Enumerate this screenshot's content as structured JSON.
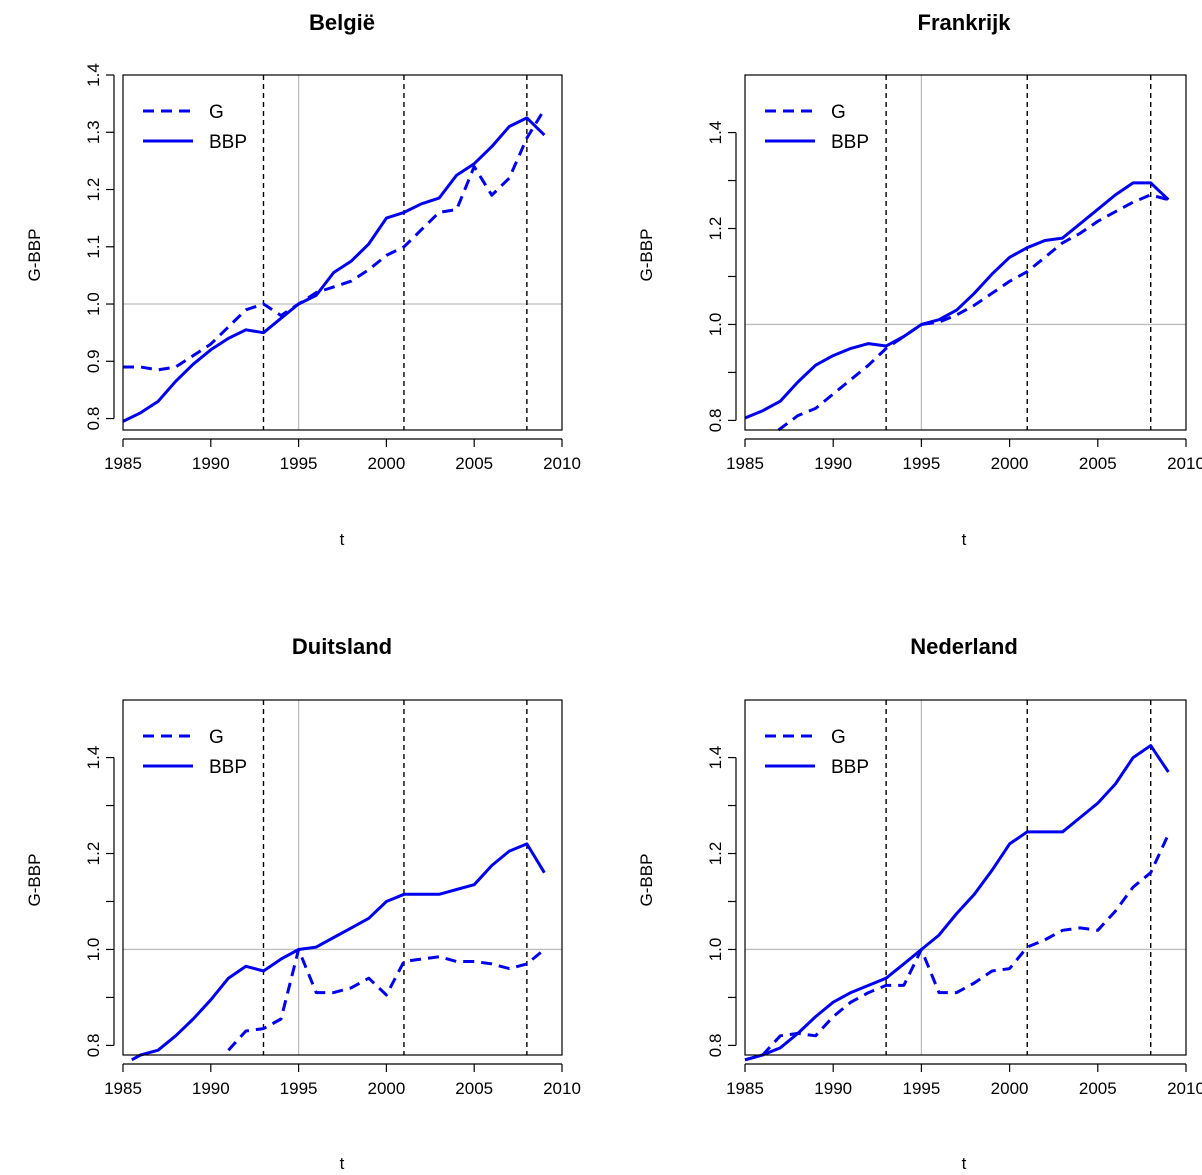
{
  "chart_data": [
    {
      "type": "line",
      "title": "België",
      "xlabel": "t",
      "ylabel": "G-BBP",
      "xlim": [
        1985,
        2010
      ],
      "ylim": [
        0.78,
        1.4
      ],
      "xticks": [
        1985,
        1990,
        1995,
        2000,
        2005,
        2010
      ],
      "yticks": [
        0.8,
        0.9,
        1.0,
        1.1,
        1.2,
        1.3,
        1.4
      ],
      "ytick_labels": [
        "0.8",
        "0.9",
        "1.0",
        "1.1",
        "1.2",
        "1.3",
        "1.4"
      ],
      "hline": 1.0,
      "vline_ref": 1995,
      "vlines_dashed": [
        1993,
        2001,
        2008
      ],
      "legend": "top-left",
      "series": [
        {
          "name": "G",
          "style": "dashed",
          "x": [
            1985,
            1986,
            1987,
            1988,
            1989,
            1990,
            1991,
            1992,
            1993,
            1994,
            1995,
            1996,
            1997,
            1998,
            1999,
            2000,
            2001,
            2002,
            2003,
            2004,
            2005,
            2006,
            2007,
            2008,
            2009
          ],
          "y": [
            0.89,
            0.89,
            0.885,
            0.89,
            0.91,
            0.93,
            0.96,
            0.99,
            1.0,
            0.98,
            1.0,
            1.02,
            1.03,
            1.04,
            1.06,
            1.085,
            1.1,
            1.13,
            1.16,
            1.165,
            1.24,
            1.19,
            1.22,
            1.29,
            1.34
          ]
        },
        {
          "name": "BBP",
          "style": "solid",
          "x": [
            1985,
            1986,
            1987,
            1988,
            1989,
            1990,
            1991,
            1992,
            1993,
            1994,
            1995,
            1996,
            1997,
            1998,
            1999,
            2000,
            2001,
            2002,
            2003,
            2004,
            2005,
            2006,
            2007,
            2008,
            2009
          ],
          "y": [
            0.795,
            0.81,
            0.83,
            0.865,
            0.895,
            0.92,
            0.94,
            0.955,
            0.95,
            0.975,
            1.0,
            1.015,
            1.055,
            1.075,
            1.105,
            1.15,
            1.16,
            1.175,
            1.185,
            1.225,
            1.245,
            1.275,
            1.31,
            1.325,
            1.295
          ]
        }
      ]
    },
    {
      "type": "line",
      "title": "Frankrijk",
      "xlabel": "t",
      "ylabel": "G-BBP",
      "xlim": [
        1985,
        2010
      ],
      "ylim": [
        0.78,
        1.52
      ],
      "xticks": [
        1985,
        1990,
        1995,
        2000,
        2005,
        2010
      ],
      "yticks": [
        0.8,
        0.9,
        1.0,
        1.1,
        1.2,
        1.3,
        1.4
      ],
      "ytick_labels": [
        "0.8",
        "",
        "1.0",
        "",
        "1.2",
        "",
        "1.4"
      ],
      "hline": 1.0,
      "vline_ref": 1995,
      "vlines_dashed": [
        1993,
        2001,
        2008
      ],
      "legend": "top-left",
      "series": [
        {
          "name": "G",
          "style": "dashed",
          "x": [
            1986.9,
            1988,
            1989,
            1990,
            1991,
            1992,
            1993,
            1994,
            1995,
            1996,
            1997,
            1998,
            1999,
            2000,
            2001,
            2002,
            2003,
            2004,
            2005,
            2006,
            2007,
            2008,
            2009
          ],
          "y": [
            0.78,
            0.81,
            0.825,
            0.855,
            0.885,
            0.915,
            0.95,
            0.975,
            1.0,
            1.005,
            1.02,
            1.04,
            1.065,
            1.09,
            1.11,
            1.14,
            1.17,
            1.19,
            1.215,
            1.235,
            1.255,
            1.27,
            1.26
          ]
        },
        {
          "name": "BBP",
          "style": "solid",
          "x": [
            1985,
            1986,
            1987,
            1988,
            1989,
            1990,
            1991,
            1992,
            1993,
            1994,
            1995,
            1996,
            1997,
            1998,
            1999,
            2000,
            2001,
            2002,
            2003,
            2004,
            2005,
            2006,
            2007,
            2008,
            2009
          ],
          "y": [
            0.805,
            0.82,
            0.84,
            0.88,
            0.915,
            0.935,
            0.95,
            0.96,
            0.955,
            0.975,
            1.0,
            1.01,
            1.03,
            1.065,
            1.105,
            1.14,
            1.16,
            1.175,
            1.18,
            1.21,
            1.24,
            1.27,
            1.295,
            1.295,
            1.26
          ]
        }
      ]
    },
    {
      "type": "line",
      "title": "Duitsland",
      "xlabel": "t",
      "ylabel": "G-BBP",
      "xlim": [
        1985,
        2010
      ],
      "ylim": [
        0.78,
        1.52
      ],
      "xticks": [
        1985,
        1990,
        1995,
        2000,
        2005,
        2010
      ],
      "yticks": [
        0.8,
        0.9,
        1.0,
        1.1,
        1.2,
        1.3,
        1.4
      ],
      "ytick_labels": [
        "0.8",
        "",
        "1.0",
        "",
        "1.2",
        "",
        "1.4"
      ],
      "hline": 1.0,
      "vline_ref": 1995,
      "vlines_dashed": [
        1993,
        2001,
        2008
      ],
      "legend": "top-left",
      "series": [
        {
          "name": "G",
          "style": "dashed",
          "x": [
            1991,
            1992,
            1993,
            1994,
            1995,
            1996,
            1997,
            1998,
            1999,
            2000,
            2001,
            2002,
            2003,
            2004,
            2005,
            2006,
            2007,
            2008,
            2009
          ],
          "y": [
            0.79,
            0.83,
            0.835,
            0.855,
            1.0,
            0.91,
            0.91,
            0.92,
            0.94,
            0.905,
            0.975,
            0.98,
            0.985,
            0.975,
            0.975,
            0.97,
            0.96,
            0.97,
            1.0
          ]
        },
        {
          "name": "BBP",
          "style": "solid",
          "x": [
            1985.5,
            1986,
            1987,
            1988,
            1989,
            1990,
            1991,
            1992,
            1993,
            1994,
            1995,
            1996,
            1997,
            1998,
            1999,
            2000,
            2001,
            2002,
            2003,
            2004,
            2005,
            2006,
            2007,
            2008,
            2009
          ],
          "y": [
            0.77,
            0.78,
            0.79,
            0.82,
            0.855,
            0.895,
            0.94,
            0.965,
            0.955,
            0.98,
            1.0,
            1.005,
            1.025,
            1.045,
            1.065,
            1.1,
            1.115,
            1.115,
            1.115,
            1.125,
            1.135,
            1.175,
            1.205,
            1.22,
            1.16
          ]
        }
      ]
    },
    {
      "type": "line",
      "title": "Nederland",
      "xlabel": "t",
      "ylabel": "G-BBP",
      "xlim": [
        1985,
        2010
      ],
      "ylim": [
        0.78,
        1.52
      ],
      "xticks": [
        1985,
        1990,
        1995,
        2000,
        2005,
        2010
      ],
      "yticks": [
        0.8,
        0.9,
        1.0,
        1.1,
        1.2,
        1.3,
        1.4
      ],
      "ytick_labels": [
        "0.8",
        "",
        "1.0",
        "",
        "1.2",
        "",
        "1.4"
      ],
      "hline": 1.0,
      "vline_ref": 1995,
      "vlines_dashed": [
        1993,
        2001,
        2008
      ],
      "legend": "top-left",
      "series": [
        {
          "name": "G",
          "style": "dashed",
          "x": [
            1985,
            1986,
            1987,
            1988,
            1989,
            1990,
            1991,
            1992,
            1993,
            1994,
            1995,
            1996,
            1997,
            1998,
            1999,
            2000,
            2001,
            2002,
            2003,
            2004,
            2005,
            2006,
            2007,
            2008,
            2009
          ],
          "y": [
            0.77,
            0.78,
            0.82,
            0.825,
            0.82,
            0.86,
            0.89,
            0.91,
            0.925,
            0.925,
            1.0,
            0.91,
            0.91,
            0.93,
            0.955,
            0.96,
            1.005,
            1.02,
            1.04,
            1.045,
            1.04,
            1.08,
            1.13,
            1.16,
            1.24
          ]
        },
        {
          "name": "BBP",
          "style": "solid",
          "x": [
            1985,
            1986,
            1987,
            1988,
            1989,
            1990,
            1991,
            1992,
            1993,
            1994,
            1995,
            1996,
            1997,
            1998,
            1999,
            2000,
            2001,
            2002,
            2003,
            2004,
            2005,
            2006,
            2007,
            2008,
            2009
          ],
          "y": [
            0.77,
            0.78,
            0.795,
            0.825,
            0.86,
            0.89,
            0.91,
            0.925,
            0.94,
            0.97,
            1.0,
            1.03,
            1.075,
            1.115,
            1.165,
            1.22,
            1.245,
            1.245,
            1.245,
            1.275,
            1.305,
            1.345,
            1.4,
            1.425,
            1.37
          ]
        }
      ]
    }
  ],
  "colors": {
    "series": "#0000ee",
    "reference": "#bebebe",
    "dashed_vline": "#000000",
    "axis": "#000000"
  }
}
